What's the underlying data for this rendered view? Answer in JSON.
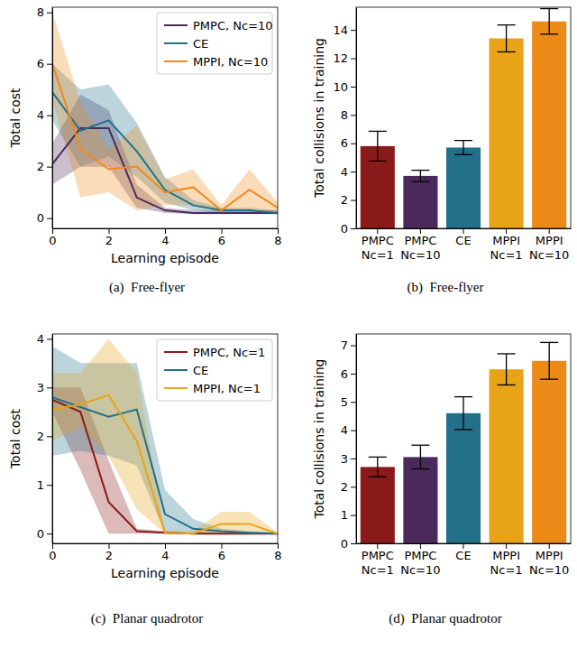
{
  "chart_data": [
    {
      "type": "line",
      "caption": "(a)  Free-flyer",
      "xlabel": "Learning episode",
      "ylabel": "Total cost",
      "x": [
        0,
        1,
        2,
        3,
        4,
        5,
        6,
        7,
        8
      ],
      "xlim": [
        0,
        8
      ],
      "xticks": [
        0,
        2,
        4,
        6,
        8
      ],
      "ylim": [
        -0.4,
        8.2
      ],
      "yticks": [
        0,
        2,
        4,
        6,
        8
      ],
      "legend": "upper right",
      "series": [
        {
          "name": "PMPC, Nc=10",
          "color": "#4b2a5b",
          "values": [
            2.1,
            3.5,
            3.5,
            0.8,
            0.3,
            0.2,
            0.2,
            0.2,
            0.2
          ],
          "lower": [
            1.3,
            2.0,
            2.0,
            0.4,
            0.2,
            0.15,
            0.15,
            0.15,
            0.15
          ],
          "upper": [
            2.9,
            4.8,
            4.2,
            1.3,
            0.4,
            0.3,
            0.3,
            0.3,
            0.3
          ]
        },
        {
          "name": "CE",
          "color": "#22708a",
          "values": [
            4.9,
            3.4,
            3.8,
            2.6,
            1.1,
            0.5,
            0.3,
            0.3,
            0.2
          ],
          "lower": [
            3.8,
            2.0,
            2.4,
            1.6,
            0.6,
            0.3,
            0.2,
            0.2,
            0.15
          ],
          "upper": [
            6.0,
            5.0,
            5.2,
            3.7,
            1.6,
            0.7,
            0.4,
            0.4,
            0.3
          ]
        },
        {
          "name": "MPPI, Nc=10",
          "color": "#f08a1c",
          "values": [
            6.0,
            2.7,
            1.9,
            2.0,
            1.0,
            1.2,
            0.3,
            1.1,
            0.4
          ],
          "lower": [
            4.6,
            0.8,
            1.0,
            0.3,
            0.5,
            0.5,
            0.2,
            0.3,
            0.2
          ],
          "upper": [
            8.0,
            4.5,
            2.7,
            3.6,
            1.5,
            1.9,
            0.5,
            1.9,
            0.6
          ]
        }
      ]
    },
    {
      "type": "bar",
      "caption": "(b)  Free-flyer",
      "ylabel": "Total collisions in training",
      "categories": [
        "PMPC\nNc=1",
        "PMPC\nNc=10",
        "CE",
        "MPPI\nNc=1",
        "MPPI\nNc=10"
      ],
      "values": [
        5.8,
        3.7,
        5.7,
        13.4,
        14.6
      ],
      "errors": [
        1.05,
        0.4,
        0.5,
        0.95,
        0.9
      ],
      "colors": [
        "#8b1a1a",
        "#4b2a5b",
        "#22708a",
        "#e8a317",
        "#ec8a17"
      ],
      "ylim": [
        0,
        15.6
      ],
      "yticks": [
        0,
        2,
        4,
        6,
        8,
        10,
        12,
        14
      ]
    },
    {
      "type": "line",
      "caption": "(c)  Planar quadrotor",
      "xlabel": "Learning episode",
      "ylabel": "Total cost",
      "x": [
        0,
        1,
        2,
        3,
        4,
        5,
        6,
        7,
        8
      ],
      "xlim": [
        0,
        8
      ],
      "xticks": [
        0,
        2,
        4,
        6,
        8
      ],
      "ylim": [
        -0.2,
        4.1
      ],
      "yticks": [
        0,
        1,
        2,
        3,
        4
      ],
      "legend": "upper right",
      "series": [
        {
          "name": "PMPC, Nc=1",
          "color": "#8b1a1a",
          "values": [
            2.75,
            2.5,
            0.65,
            0.05,
            0.02,
            0.0,
            0.0,
            0.0,
            0.0
          ],
          "lower": [
            2.5,
            1.3,
            0.0,
            0.0,
            0.0,
            0.0,
            0.0,
            0.0,
            0.0
          ],
          "upper": [
            3.0,
            3.0,
            1.5,
            0.1,
            0.05,
            0.02,
            0.02,
            0.02,
            0.02
          ]
        },
        {
          "name": "CE",
          "color": "#22708a",
          "values": [
            2.8,
            2.6,
            2.4,
            2.55,
            0.4,
            0.1,
            0.05,
            0.02,
            0.0
          ],
          "lower": [
            1.6,
            1.7,
            1.6,
            1.4,
            0.0,
            0.0,
            0.0,
            0.0,
            0.0
          ],
          "upper": [
            3.85,
            3.5,
            3.5,
            3.5,
            0.9,
            0.3,
            0.1,
            0.05,
            0.02
          ]
        },
        {
          "name": "MPPI, Nc=1",
          "color": "#e8a317",
          "values": [
            2.55,
            2.65,
            2.85,
            1.9,
            0.02,
            0.0,
            0.2,
            0.2,
            0.0
          ],
          "lower": [
            1.9,
            2.2,
            1.6,
            0.5,
            0.0,
            0.0,
            0.0,
            0.0,
            0.0
          ],
          "upper": [
            3.3,
            3.3,
            4.0,
            3.3,
            0.05,
            0.05,
            0.45,
            0.45,
            0.02
          ]
        }
      ]
    },
    {
      "type": "bar",
      "caption": "(d)  Planar quadrotor",
      "ylabel": "Total collisions in training",
      "categories": [
        "PMPC\nNc=1",
        "PMPC\nNc=10",
        "CE",
        "MPPI\nNc=1",
        "MPPI\nNc=10"
      ],
      "values": [
        2.7,
        3.05,
        4.6,
        6.15,
        6.45
      ],
      "errors": [
        0.35,
        0.42,
        0.58,
        0.55,
        0.65
      ],
      "colors": [
        "#8b1a1a",
        "#4b2a5b",
        "#22708a",
        "#e8a317",
        "#ec8a17"
      ],
      "ylim": [
        0,
        7.4
      ],
      "yticks": [
        0,
        1,
        2,
        3,
        4,
        5,
        6,
        7
      ]
    }
  ]
}
